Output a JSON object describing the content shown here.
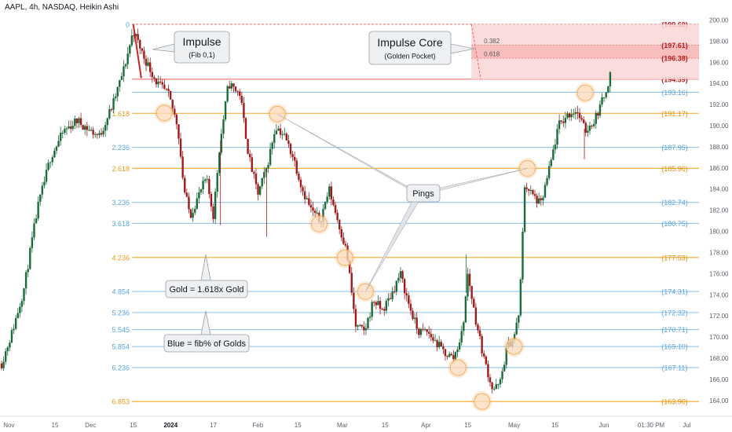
{
  "header": {
    "title": "AAPL, 4h, NASDAQ, Heikin Ashi"
  },
  "colors": {
    "gold": "#f5a623",
    "blue": "#90c4ec",
    "red": "#b71c1c",
    "core": "#f06262",
    "bull": "#1b6b3a",
    "bear": "#9e1b1b",
    "axis_text": "#131722",
    "grid_text": "#5d606b"
  },
  "chart_data": {
    "type": "candlestick",
    "title": "",
    "ylim": [
      162.5,
      201
    ],
    "price_ticks": [
      "200.00",
      "198.00",
      "196.00",
      "194.00",
      "192.00",
      "190.00",
      "188.00",
      "186.00",
      "184.00",
      "182.00",
      "180.00",
      "178.00",
      "176.00",
      "174.00",
      "172.00",
      "170.00",
      "168.00",
      "166.00",
      "164.00"
    ],
    "x_ticks": [
      {
        "label": "Nov",
        "x": 0.02
      },
      {
        "label": "15",
        "x": 0.6
      },
      {
        "label": "Dec",
        "x": 1.0
      },
      {
        "label": "15",
        "x": 1.48
      },
      {
        "label": "2024",
        "x": 1.9
      },
      {
        "label": "17",
        "x": 2.38
      },
      {
        "label": "Feb",
        "x": 2.88
      },
      {
        "label": "15",
        "x": 3.33
      },
      {
        "label": "Mar",
        "x": 3.83
      },
      {
        "label": "15",
        "x": 4.31
      },
      {
        "label": "Apr",
        "x": 4.77
      },
      {
        "label": "15",
        "x": 5.24
      },
      {
        "label": "May",
        "x": 5.76
      },
      {
        "label": "15",
        "x": 6.22
      },
      {
        "label": "Jun",
        "x": 6.77
      },
      {
        "label": "01:30 PM",
        "x": 7.3
      },
      {
        "label": "Jul",
        "x": 7.7
      }
    ],
    "time_range": [
      0,
      7.75
    ],
    "levels": [
      {
        "fib": "0",
        "price": 199.6,
        "label": "(199.60)",
        "kind": "red"
      },
      {
        "fib": "",
        "price": 194.39,
        "label": "(194.39)",
        "kind": "red"
      },
      {
        "fib": "",
        "price": 193.16,
        "label": "(193.16)",
        "kind": "blue"
      },
      {
        "fib": "1.618",
        "price": 191.17,
        "label": "(191.17)",
        "kind": "gold"
      },
      {
        "fib": "2.236",
        "price": 187.95,
        "label": "(187.95)",
        "kind": "blue"
      },
      {
        "fib": "2.618",
        "price": 185.96,
        "label": "(185.96)",
        "kind": "gold"
      },
      {
        "fib": "3.236",
        "price": 182.74,
        "label": "(182.74)",
        "kind": "blue"
      },
      {
        "fib": "3.618",
        "price": 180.75,
        "label": "(180.75)",
        "kind": "blue"
      },
      {
        "fib": "4.236",
        "price": 177.53,
        "label": "(177.53)",
        "kind": "gold"
      },
      {
        "fib": "4.854",
        "price": 174.31,
        "label": "(174.31)",
        "kind": "blue"
      },
      {
        "fib": "5.236",
        "price": 172.32,
        "label": "(172.32)",
        "kind": "blue"
      },
      {
        "fib": "5.545",
        "price": 170.71,
        "label": "(170.71)",
        "kind": "blue"
      },
      {
        "fib": "5.854",
        "price": 169.1,
        "label": "(169.10)",
        "kind": "blue"
      },
      {
        "fib": "6.236",
        "price": 167.11,
        "label": "(167.11)",
        "kind": "blue"
      },
      {
        "fib": "6.853",
        "price": 163.9,
        "label": "(163.90)",
        "kind": "gold"
      }
    ],
    "core_zone": {
      "top": 199.6,
      "bottom": 194.39,
      "t_start": 5.28,
      "lines": [
        {
          "fib": "0.382",
          "price": 197.61,
          "label": "(197.61)"
        },
        {
          "fib": "0.618",
          "price": 196.38,
          "label": "(196.38)"
        }
      ]
    },
    "path": [
      [
        0.0,
        167.5
      ],
      [
        0.12,
        170.5
      ],
      [
        0.25,
        174.5
      ],
      [
        0.4,
        182.0
      ],
      [
        0.55,
        187.0
      ],
      [
        0.7,
        189.5
      ],
      [
        0.85,
        190.5
      ],
      [
        1.0,
        189.5
      ],
      [
        1.1,
        189.0
      ],
      [
        1.25,
        192.0
      ],
      [
        1.38,
        195.5
      ],
      [
        1.48,
        199.0
      ],
      [
        1.6,
        196.5
      ],
      [
        1.75,
        194.0
      ],
      [
        1.87,
        193.0
      ],
      [
        1.98,
        190.0
      ],
      [
        2.05,
        184.0
      ],
      [
        2.12,
        181.5
      ],
      [
        2.22,
        183.5
      ],
      [
        2.3,
        185.0
      ],
      [
        2.38,
        181.5
      ],
      [
        2.45,
        188.0
      ],
      [
        2.55,
        194.0
      ],
      [
        2.68,
        193.0
      ],
      [
        2.78,
        187.0
      ],
      [
        2.88,
        183.5
      ],
      [
        2.98,
        186.0
      ],
      [
        3.08,
        190.0
      ],
      [
        3.18,
        189.0
      ],
      [
        3.28,
        187.0
      ],
      [
        3.38,
        184.0
      ],
      [
        3.48,
        182.0
      ],
      [
        3.58,
        181.0
      ],
      [
        3.68,
        184.0
      ],
      [
        3.78,
        181.0
      ],
      [
        3.88,
        178.0
      ],
      [
        3.98,
        171.0
      ],
      [
        4.08,
        170.5
      ],
      [
        4.18,
        173.5
      ],
      [
        4.28,
        172.5
      ],
      [
        4.38,
        174.0
      ],
      [
        4.48,
        176.0
      ],
      [
        4.58,
        173.0
      ],
      [
        4.68,
        170.5
      ],
      [
        4.78,
        170.5
      ],
      [
        4.88,
        169.5
      ],
      [
        4.98,
        168.5
      ],
      [
        5.08,
        168.0
      ],
      [
        5.18,
        170.5
      ],
      [
        5.24,
        176.0
      ],
      [
        5.32,
        172.0
      ],
      [
        5.42,
        168.0
      ],
      [
        5.52,
        165.0
      ],
      [
        5.6,
        165.5
      ],
      [
        5.68,
        169.0
      ],
      [
        5.76,
        170.0
      ],
      [
        5.82,
        172.5
      ],
      [
        5.88,
        184.5
      ],
      [
        5.96,
        183.5
      ],
      [
        6.06,
        182.5
      ],
      [
        6.16,
        186.0
      ],
      [
        6.26,
        190.0
      ],
      [
        6.36,
        191.0
      ],
      [
        6.46,
        191.5
      ],
      [
        6.56,
        189.5
      ],
      [
        6.66,
        190.5
      ],
      [
        6.76,
        192.5
      ],
      [
        6.84,
        194.8
      ]
    ],
    "extra_wicks": [
      {
        "t": 2.98,
        "low": 179.5
      },
      {
        "t": 2.46,
        "low": 180.6
      },
      {
        "t": 6.55,
        "low": 186.8
      },
      {
        "t": 5.22,
        "high": 177.8
      }
    ],
    "pings": [
      {
        "t": 1.83,
        "price": 191.2
      },
      {
        "t": 3.1,
        "price": 191.1
      },
      {
        "t": 3.57,
        "price": 180.7
      },
      {
        "t": 3.86,
        "price": 177.5
      },
      {
        "t": 4.09,
        "price": 174.3
      },
      {
        "t": 5.13,
        "price": 167.1
      },
      {
        "t": 5.4,
        "price": 163.9
      },
      {
        "t": 5.76,
        "price": 169.1
      },
      {
        "t": 5.91,
        "price": 185.96
      },
      {
        "t": 6.56,
        "price": 193.1
      }
    ],
    "impulse_line": [
      [
        1.48,
        199.6
      ],
      [
        1.57,
        194.5
      ]
    ],
    "annotations": [
      {
        "key": "impulse",
        "title": "Impulse",
        "sub": "(Fib 0,1)"
      },
      {
        "key": "core",
        "title": "Impulse Core",
        "sub": "(Golden Pocket)"
      },
      {
        "key": "pings",
        "title": "Pings",
        "sub": ""
      },
      {
        "key": "gold",
        "title": "Gold = 1.618x Gold",
        "sub": ""
      },
      {
        "key": "blue",
        "title": "Blue = fib% of Golds",
        "sub": ""
      }
    ]
  }
}
